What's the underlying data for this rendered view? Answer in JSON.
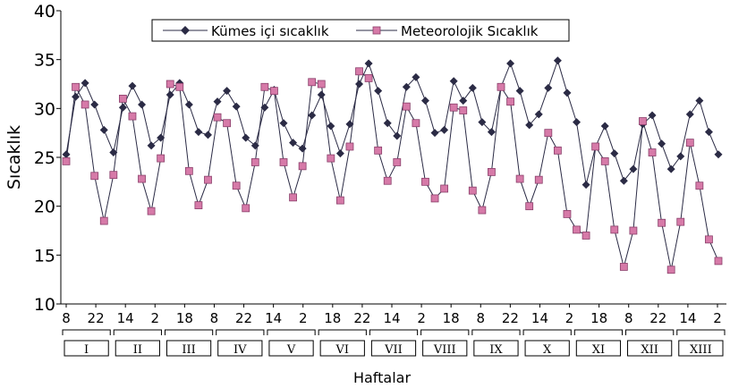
{
  "chart_data": {
    "type": "line",
    "ylabel": "Sıcaklık",
    "xlabel": "Haftalar",
    "ylim": [
      10,
      40
    ],
    "yticks": [
      10,
      15,
      20,
      25,
      30,
      35,
      40
    ],
    "grid": false,
    "legend_position": "top",
    "hour_ticks": [
      "8",
      "22",
      "14",
      "2",
      "18",
      "8",
      "22",
      "14",
      "2",
      "18",
      "22",
      "14",
      "2",
      "18",
      "8",
      "22",
      "14",
      "2",
      "18",
      "8",
      "22",
      "14",
      "2"
    ],
    "weeks": [
      "I",
      "II",
      "III",
      "IV",
      "V",
      "VI",
      "VII",
      "VIII",
      "IX",
      "X",
      "XI",
      "XII",
      "XIII"
    ],
    "series": [
      {
        "name": "Kümes içi sıcaklık",
        "color": "#2b2b45",
        "marker": "diamond",
        "values": [
          25.3,
          31.2,
          32.6,
          30.4,
          27.8,
          25.5,
          30.1,
          32.3,
          30.4,
          26.2,
          27.0,
          31.4,
          32.6,
          30.4,
          27.6,
          27.3,
          30.7,
          31.8,
          30.2,
          27.0,
          26.2,
          30.1,
          31.9,
          28.5,
          26.5,
          25.9,
          29.3,
          31.4,
          28.2,
          25.4,
          28.4,
          32.5,
          34.6,
          31.8,
          28.5,
          27.2,
          32.2,
          33.2,
          30.8,
          27.5,
          27.8,
          32.8,
          30.8,
          32.1,
          28.6,
          27.6,
          32.2,
          34.6,
          31.8,
          28.3,
          29.4,
          32.1,
          34.9,
          31.6,
          28.6,
          22.2,
          26.1,
          28.2,
          25.4,
          22.6,
          23.8,
          28.4,
          29.3,
          26.4,
          23.8,
          25.1,
          29.4,
          30.8,
          27.6,
          25.3
        ]
      },
      {
        "name": "Meteorolojik Sıcaklık",
        "color": "#d67aa8",
        "marker": "square",
        "values": [
          24.6,
          32.2,
          30.4,
          23.1,
          18.5,
          23.2,
          31.0,
          29.2,
          22.8,
          19.5,
          24.9,
          32.5,
          32.2,
          23.6,
          20.1,
          22.7,
          29.1,
          28.5,
          22.1,
          19.8,
          24.5,
          32.2,
          31.8,
          24.5,
          20.9,
          24.1,
          32.7,
          32.5,
          24.9,
          20.6,
          26.1,
          33.8,
          33.1,
          25.7,
          22.6,
          24.5,
          30.2,
          28.5,
          22.5,
          20.8,
          21.8,
          30.1,
          29.8,
          21.6,
          19.6,
          23.5,
          32.2,
          30.7,
          22.8,
          20.0,
          22.7,
          27.5,
          25.7,
          19.2,
          17.6,
          17.0,
          26.1,
          24.6,
          17.6,
          13.8,
          17.5,
          28.7,
          25.5,
          18.3,
          13.5,
          18.4,
          26.5,
          22.1,
          16.6,
          14.4
        ]
      }
    ]
  }
}
